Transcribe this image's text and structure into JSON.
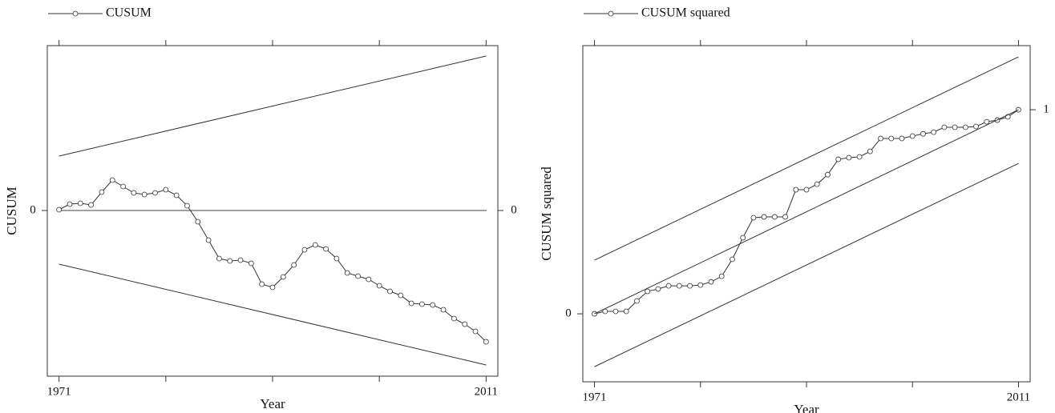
{
  "chart_data": [
    {
      "type": "line",
      "xlabel": "Year",
      "ylabel": "CUSUM",
      "x": [
        1971,
        1972,
        1973,
        1974,
        1975,
        1976,
        1977,
        1978,
        1979,
        1980,
        1981,
        1982,
        1983,
        1984,
        1985,
        1986,
        1987,
        1988,
        1989,
        1990,
        1991,
        1992,
        1993,
        1994,
        1995,
        1996,
        1997,
        1998,
        1999,
        2000,
        2001,
        2002,
        2003,
        2004,
        2005,
        2006,
        2007,
        2008,
        2009,
        2010,
        2011
      ],
      "series": [
        {
          "name": "CUSUM",
          "color": "#333333",
          "marker": "circle",
          "values": [
            0.1,
            0.8,
            0.9,
            0.7,
            2.3,
            3.8,
            3.0,
            2.2,
            2.0,
            2.2,
            2.6,
            1.9,
            0.6,
            -1.4,
            -3.7,
            -6.0,
            -6.3,
            -6.2,
            -6.6,
            -9.2,
            -9.6,
            -8.3,
            -6.8,
            -4.9,
            -4.3,
            -4.8,
            -6.0,
            -7.8,
            -8.2,
            -8.6,
            -9.4,
            -10.1,
            -10.6,
            -11.6,
            -11.7,
            -11.8,
            -12.4,
            -13.5,
            -14.2,
            -15.1,
            -16.4
          ]
        },
        {
          "color": "#333333",
          "x": [
            1971,
            2011
          ],
          "values": [
            6.8,
            19.3
          ]
        },
        {
          "color": "#333333",
          "x": [
            1971,
            2011
          ],
          "values": [
            -6.7,
            -19.3
          ]
        }
      ],
      "xlim": [
        1969.9,
        2012.1
      ],
      "xticks": [
        1971,
        2011
      ],
      "xminor": [
        1981,
        1991,
        2001
      ],
      "ylim": [
        -20.7,
        20.6
      ],
      "yticks": [
        0
      ],
      "y2lim": [
        -20.7,
        20.6
      ],
      "y2ticks": [
        0
      ],
      "grid": true
    },
    {
      "type": "line",
      "xlabel": "Year",
      "ylabel": "CUSUM squared",
      "x": [
        1971,
        1972,
        1973,
        1974,
        1975,
        1976,
        1977,
        1978,
        1979,
        1980,
        1981,
        1982,
        1983,
        1984,
        1985,
        1986,
        1987,
        1988,
        1989,
        1990,
        1991,
        1992,
        1993,
        1994,
        1995,
        1996,
        1997,
        1998,
        1999,
        2000,
        2001,
        2002,
        2003,
        2004,
        2005,
        2006,
        2007,
        2008,
        2009,
        2010,
        2011
      ],
      "series": [
        {
          "name": "CUSUM squared",
          "color": "#333333",
          "marker": "circle",
          "values": [
            0,
            0.012,
            0.012,
            0.012,
            0.063,
            0.11,
            0.122,
            0.137,
            0.137,
            0.137,
            0.141,
            0.157,
            0.184,
            0.267,
            0.373,
            0.471,
            0.475,
            0.475,
            0.475,
            0.608,
            0.608,
            0.635,
            0.682,
            0.757,
            0.765,
            0.769,
            0.796,
            0.859,
            0.859,
            0.859,
            0.871,
            0.882,
            0.89,
            0.914,
            0.914,
            0.914,
            0.918,
            0.941,
            0.949,
            0.965,
            1.0
          ]
        },
        {
          "color": "#333333",
          "x": [
            1971,
            2011
          ],
          "values": [
            0.263,
            1.259
          ]
        },
        {
          "color": "#333333",
          "x": [
            1971,
            2011
          ],
          "values": [
            0,
            1
          ]
        },
        {
          "color": "#333333",
          "x": [
            1971,
            2011
          ],
          "values": [
            -0.259,
            0.737
          ]
        }
      ],
      "xlim": [
        1969.9,
        2012.1
      ],
      "xticks": [
        1971,
        2011
      ],
      "xminor": [
        1981,
        1991,
        2001
      ],
      "ylim": [
        -0.333,
        1.314
      ],
      "yticks": [
        0
      ],
      "y2lim": [
        -0.333,
        1.314
      ],
      "y2ticks": [
        1
      ],
      "grid": false
    }
  ]
}
